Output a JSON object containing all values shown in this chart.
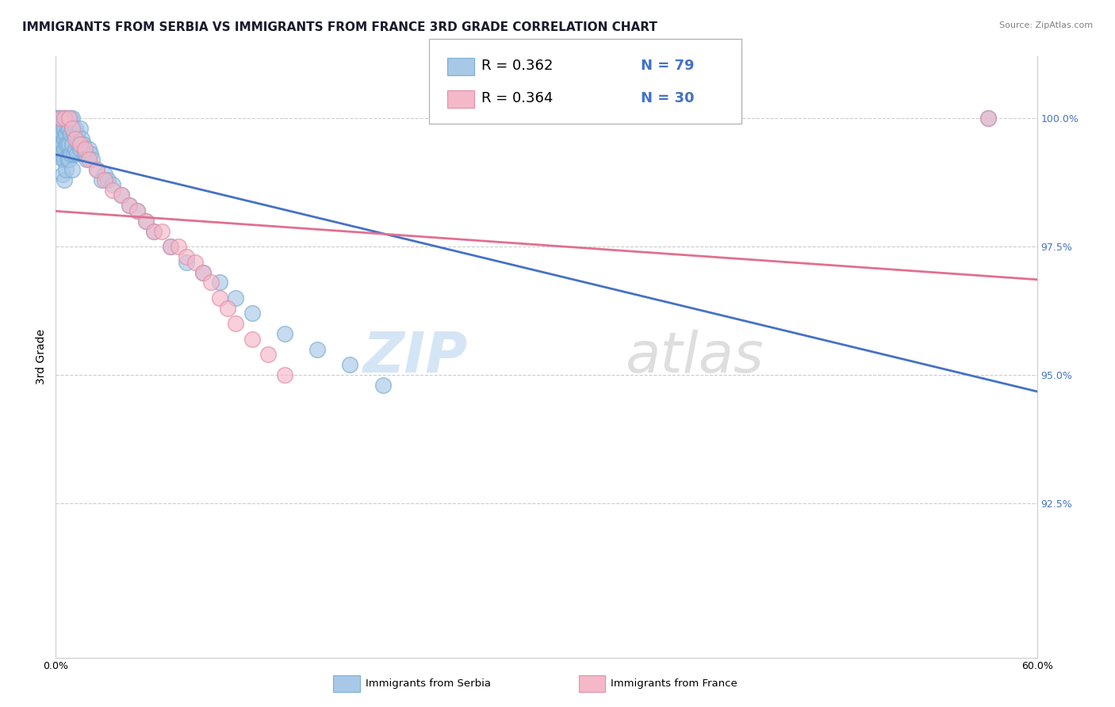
{
  "title": "IMMIGRANTS FROM SERBIA VS IMMIGRANTS FROM FRANCE 3RD GRADE CORRELATION CHART",
  "source_text": "Source: ZipAtlas.com",
  "ylabel": "3rd Grade",
  "x_min": 0.0,
  "x_max": 60.0,
  "y_min": 89.5,
  "y_max": 101.2,
  "serbia_color": "#a8c8e8",
  "serbia_edge_color": "#7aafd4",
  "france_color": "#f4b8c8",
  "france_edge_color": "#e090a8",
  "serbia_line_color": "#4472c4",
  "france_line_color": "#e07090",
  "serbia_R": 0.362,
  "serbia_N": 79,
  "france_R": 0.364,
  "france_N": 30,
  "serbia_scatter_x": [
    0.1,
    0.1,
    0.2,
    0.2,
    0.2,
    0.2,
    0.3,
    0.3,
    0.3,
    0.3,
    0.3,
    0.4,
    0.4,
    0.4,
    0.4,
    0.4,
    0.5,
    0.5,
    0.5,
    0.5,
    0.5,
    0.5,
    0.5,
    0.6,
    0.6,
    0.6,
    0.6,
    0.7,
    0.7,
    0.7,
    0.7,
    0.8,
    0.8,
    0.8,
    0.8,
    0.9,
    0.9,
    0.9,
    1.0,
    1.0,
    1.0,
    1.0,
    1.1,
    1.1,
    1.2,
    1.2,
    1.3,
    1.3,
    1.4,
    1.5,
    1.5,
    1.6,
    1.7,
    1.8,
    1.9,
    2.0,
    2.1,
    2.2,
    2.5,
    2.8,
    3.0,
    3.2,
    3.5,
    4.0,
    4.5,
    5.0,
    5.5,
    6.0,
    7.0,
    8.0,
    9.0,
    10.0,
    11.0,
    12.0,
    14.0,
    16.0,
    18.0,
    20.0,
    57.0
  ],
  "serbia_scatter_y": [
    100.0,
    100.0,
    100.0,
    100.0,
    99.8,
    99.5,
    100.0,
    100.0,
    99.7,
    99.5,
    99.3,
    100.0,
    99.8,
    99.5,
    99.2,
    98.9,
    100.0,
    100.0,
    99.8,
    99.6,
    99.4,
    99.2,
    98.8,
    100.0,
    99.7,
    99.5,
    99.0,
    100.0,
    99.8,
    99.5,
    99.2,
    100.0,
    99.8,
    99.5,
    99.2,
    100.0,
    99.7,
    99.3,
    100.0,
    99.8,
    99.5,
    99.0,
    99.7,
    99.3,
    99.8,
    99.4,
    99.7,
    99.3,
    99.5,
    99.8,
    99.4,
    99.6,
    99.5,
    99.3,
    99.2,
    99.4,
    99.3,
    99.2,
    99.0,
    98.8,
    98.9,
    98.8,
    98.7,
    98.5,
    98.3,
    98.2,
    98.0,
    97.8,
    97.5,
    97.2,
    97.0,
    96.8,
    96.5,
    96.2,
    95.8,
    95.5,
    95.2,
    94.8,
    100.0
  ],
  "france_scatter_x": [
    0.3,
    0.5,
    0.8,
    1.0,
    1.2,
    1.5,
    1.8,
    2.0,
    2.5,
    3.0,
    3.5,
    4.0,
    4.5,
    5.0,
    5.5,
    6.0,
    6.5,
    7.0,
    7.5,
    8.0,
    8.5,
    9.0,
    9.5,
    10.0,
    10.5,
    11.0,
    12.0,
    13.0,
    14.0,
    57.0
  ],
  "france_scatter_y": [
    100.0,
    100.0,
    100.0,
    99.8,
    99.6,
    99.5,
    99.4,
    99.2,
    99.0,
    98.8,
    98.6,
    98.5,
    98.3,
    98.2,
    98.0,
    97.8,
    97.8,
    97.5,
    97.5,
    97.3,
    97.2,
    97.0,
    96.8,
    96.5,
    96.3,
    96.0,
    95.7,
    95.4,
    95.0,
    100.0
  ],
  "watermark_zip": "ZIP",
  "watermark_atlas": "atlas",
  "background_color": "#ffffff",
  "grid_color": "#cccccc",
  "title_fontsize": 11,
  "axis_label_fontsize": 10,
  "tick_fontsize": 9,
  "legend_fontsize": 13
}
